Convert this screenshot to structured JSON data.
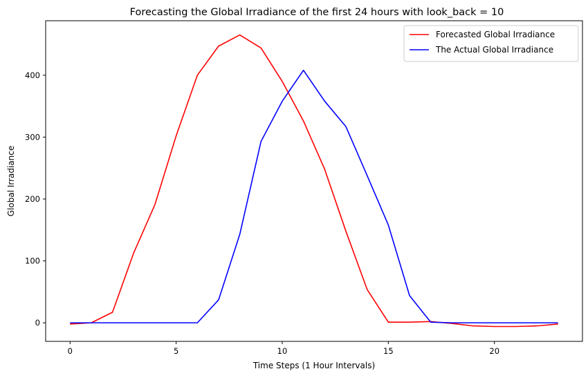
{
  "chart_data": {
    "type": "line",
    "title": "Forecasting the Global Irradiance of the first 24 hours with look_back = 10",
    "xlabel": "Time Steps (1 Hour Intervals)",
    "ylabel": "Global Irradiance",
    "xlim": [
      -1.15,
      24.15
    ],
    "ylim": [
      -30,
      488
    ],
    "xticks": [
      0,
      5,
      10,
      15,
      20
    ],
    "yticks": [
      0,
      100,
      200,
      300,
      400
    ],
    "grid": false,
    "legend": "top-right",
    "x": [
      0,
      1,
      2,
      3,
      4,
      5,
      6,
      7,
      8,
      9,
      10,
      11,
      12,
      13,
      14,
      15,
      16,
      17,
      18,
      19,
      20,
      21,
      22,
      23
    ],
    "series": [
      {
        "name": "Forecasted Global Irradiance",
        "color": "#ff0000",
        "values": [
          -2,
          0,
          17,
          113,
          191,
          302,
          400,
          447,
          465,
          444,
          390,
          326,
          248,
          148,
          54,
          1,
          1,
          2,
          -1,
          -5,
          -6,
          -6,
          -5,
          -2
        ]
      },
      {
        "name": "The Actual Global Irradiance",
        "color": "#0000ff",
        "values": [
          0,
          0,
          0,
          0,
          0,
          0,
          0,
          37,
          143,
          293,
          358,
          408,
          358,
          317,
          238,
          158,
          44,
          1,
          0,
          0,
          0,
          0,
          0,
          0
        ]
      }
    ]
  }
}
